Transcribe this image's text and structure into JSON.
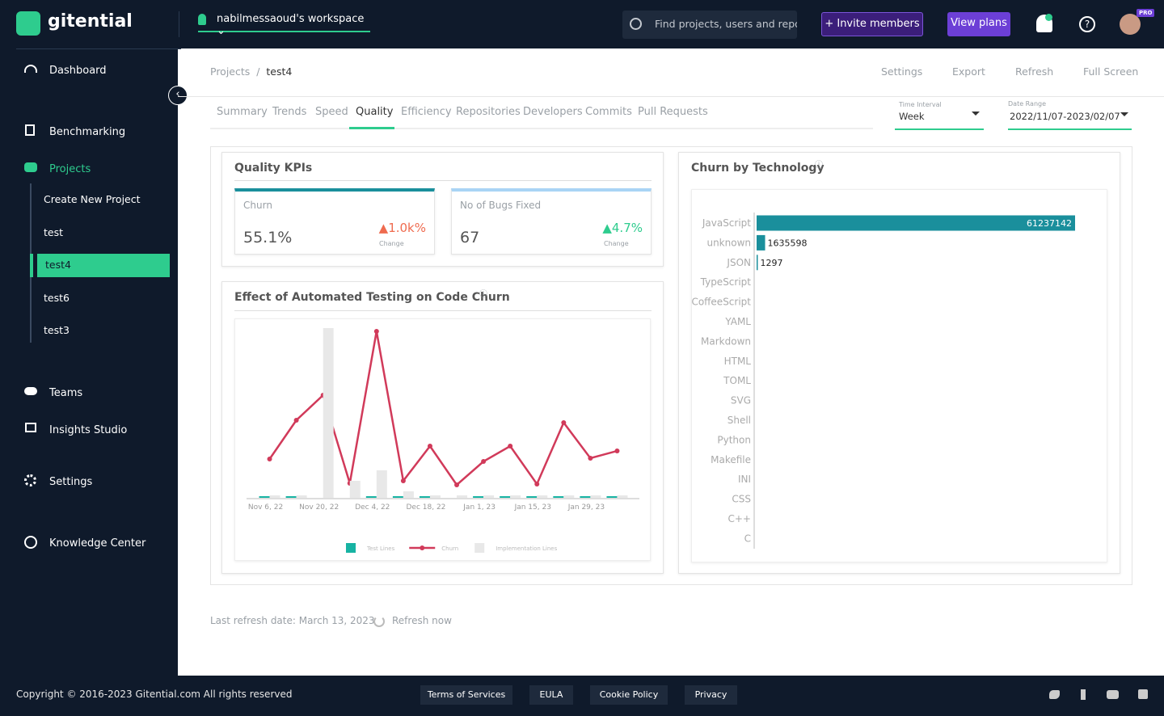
{
  "header": {
    "brand": "gitential",
    "workspace": "nabilmessaoud's workspace",
    "search_placeholder": "Find projects, users and reposi",
    "invite": "Invite members",
    "view_plans": "View plans",
    "badge": "PRO"
  },
  "sidebar": {
    "nav": [
      "Dashboard",
      "Benchmarking",
      "Projects",
      "Teams",
      "Insights Studio",
      "Settings",
      "Knowledge Center"
    ],
    "projects": [
      "Create New Project",
      "test",
      "test4",
      "test6",
      "test3"
    ]
  },
  "breadcrumb": [
    "Projects",
    "test4"
  ],
  "toolbar": [
    "Settings",
    "Export",
    "Refresh",
    "Full Screen"
  ],
  "tabs": [
    "Summary",
    "Trends",
    "Speed",
    "Quality",
    "Efficiency",
    "Repositories",
    "Developers",
    "Commits",
    "Pull Requests"
  ],
  "filters": {
    "time_interval": {
      "label": "Time Interval",
      "value": "Week"
    },
    "date_range": {
      "label": "Date Range",
      "value": "2022/11/07-2023/02/07"
    }
  },
  "quality_kpis": {
    "title": "Quality KPIs",
    "cards": [
      {
        "name": "Churn",
        "value": "55.1%",
        "change": "▲1.0k%",
        "change_label": "Change"
      },
      {
        "name": "No of Bugs Fixed",
        "value": "67",
        "change": "▲4.7%",
        "change_label": "Change"
      }
    ]
  },
  "chart_data": [
    {
      "type": "combo",
      "title": "Effect of Automated Testing on Code Churn",
      "categories": [
        "Nov  6, 22",
        null,
        "Nov 20, 22",
        null,
        "Dec  4, 22",
        null,
        "Dec 18, 22",
        null,
        "Jan  1, 23",
        null,
        "Jan 15, 23",
        null,
        "Jan 29, 23",
        null
      ],
      "ylim": [
        0,
        210
      ],
      "series": [
        {
          "name": "Test Lines",
          "type": "bar",
          "color": "#17b3a3",
          "values": [
            2,
            2,
            0,
            0,
            2,
            2,
            2,
            0,
            2,
            2,
            2,
            2,
            2,
            2
          ]
        },
        {
          "name": "Churn",
          "type": "line",
          "color": "#d13a5a",
          "values": [
            48,
            96,
            127,
            18,
            206,
            21,
            64,
            16,
            45,
            64,
            17,
            93,
            49,
            58
          ]
        },
        {
          "name": "Implementation Lines",
          "type": "bar",
          "color": "#e8e8e8",
          "values": [
            3,
            3,
            210,
            21,
            34,
            8,
            3,
            3,
            3,
            3,
            3,
            3,
            3,
            3
          ]
        }
      ]
    },
    {
      "type": "hbar",
      "title": "Churn by Technology",
      "color": "#1a8f9c",
      "categories": [
        "JavaScript",
        "unknown",
        "JSON",
        "TypeScript",
        "CoffeeScript",
        "YAML",
        "Markdown",
        "HTML",
        "TOML",
        "SVG",
        "Shell",
        "Python",
        "Makefile",
        "INI",
        "CSS",
        "C++",
        "C"
      ],
      "values": [
        61237142,
        1635598,
        1297,
        0,
        0,
        0,
        0,
        0,
        0,
        0,
        0,
        0,
        0,
        0,
        0,
        0,
        0
      ],
      "xlim": [
        0,
        61237142
      ]
    }
  ],
  "footer": {
    "last_refresh": "Last refresh date: March 13, 2023",
    "refresh_now": "Refresh now",
    "copyright": "Copyright © 2016-2023 Gitential.com All rights reserved",
    "links": [
      "Terms of Services",
      "EULA",
      "Cookie Policy",
      "Privacy"
    ]
  }
}
